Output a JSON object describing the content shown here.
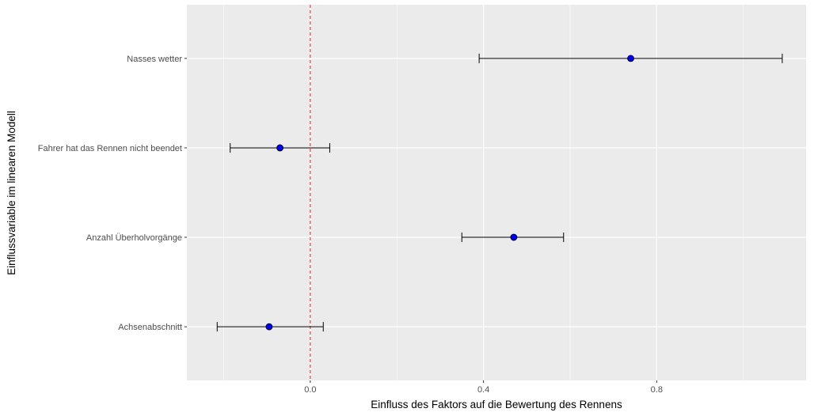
{
  "chart_data": {
    "type": "forest",
    "title": "",
    "xlabel": "Einfluss des Faktors auf die Bewertung des Rennens",
    "ylabel": "Einflussvariable im linearen Modell",
    "xlim": [
      -0.285,
      1.145
    ],
    "xticks": [
      0.0,
      0.4,
      0.8
    ],
    "xtick_labels": [
      "0.0",
      "0.4",
      "0.8"
    ],
    "grid": true,
    "reference_line": {
      "x": 0,
      "color": "#dd2222",
      "style": "dashed"
    },
    "point_color": "#0000ee",
    "background_color": "#ebebeb",
    "categories": [
      "Nasses wetter",
      "Fahrer hat das Rennen nicht beendet",
      "Anzahl Überholvorgänge",
      "Achsenabschnitt"
    ],
    "estimates": [
      0.74,
      -0.07,
      0.47,
      -0.095
    ],
    "lower": [
      0.39,
      -0.185,
      0.35,
      -0.215
    ],
    "upper": [
      1.09,
      0.045,
      0.585,
      0.03
    ]
  }
}
